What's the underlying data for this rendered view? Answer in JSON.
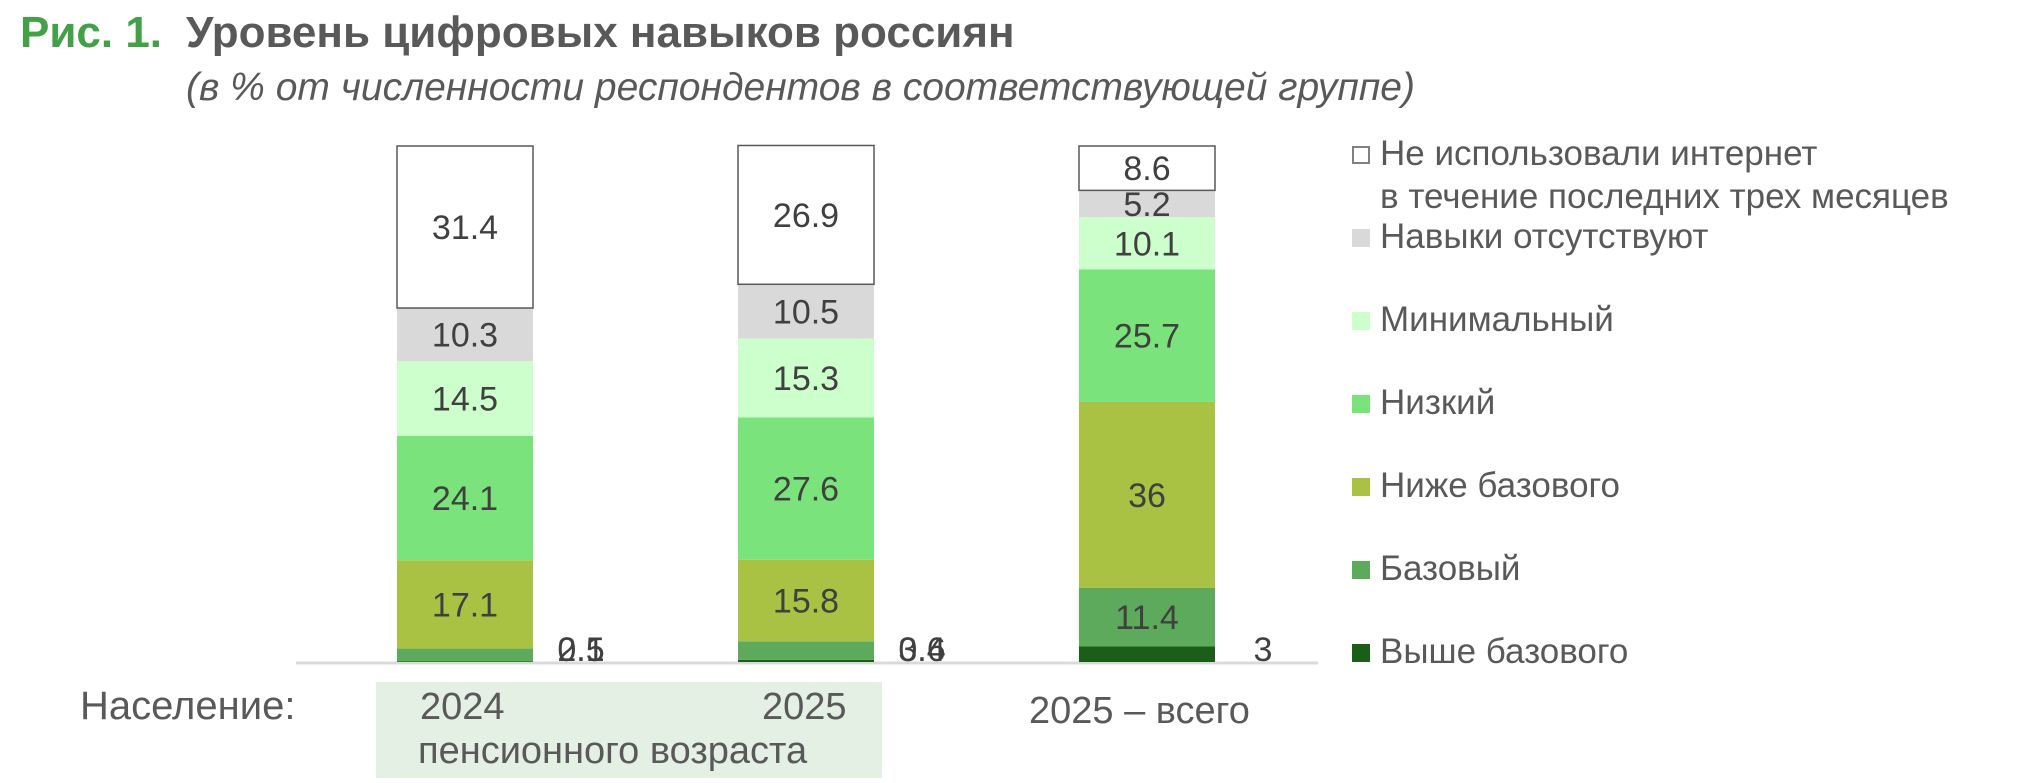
{
  "figure": {
    "prefix": "Рис. 1.",
    "prefix_color": "#43a047",
    "title": "Уровень цифровых навыков россиян",
    "subtitle": "(в % от численности респондентов в соответствующей группе)"
  },
  "axis": {
    "title": "Население:",
    "group_label": "пенсионного возраста",
    "group_band_color": "#e3f0e3"
  },
  "legend": [
    {
      "label": "Не использовали интернет",
      "label2": "в течение последних трех месяцев",
      "color": "#ffffff"
    },
    {
      "label": "Навыки отсутствуют",
      "color": "#d9d9d9"
    },
    {
      "label": "Минимальный",
      "color": "#ccffcc"
    },
    {
      "label": "Низкий",
      "color": "#7be37b"
    },
    {
      "label": "Ниже базового",
      "color": "#a9c244"
    },
    {
      "label": "Базовый",
      "color": "#5daa5d"
    },
    {
      "label": "Выше базового",
      "color": "#1a5e1a"
    }
  ],
  "chart_data": {
    "type": "bar",
    "stacked": true,
    "categories": [
      "2024",
      "2025",
      "2025 – всего"
    ],
    "series": [
      {
        "name": "Выше базового",
        "color": "#1a5e1a",
        "values": [
          0.1,
          0.4,
          3
        ]
      },
      {
        "name": "Базовый",
        "color": "#5daa5d",
        "values": [
          2.5,
          3.6,
          11.4
        ]
      },
      {
        "name": "Ниже базового",
        "color": "#a9c244",
        "values": [
          17.1,
          15.8,
          36
        ]
      },
      {
        "name": "Низкий",
        "color": "#7be37b",
        "values": [
          24.1,
          27.6,
          25.7
        ]
      },
      {
        "name": "Минимальный",
        "color": "#ccffcc",
        "values": [
          14.5,
          15.3,
          10.1
        ]
      },
      {
        "name": "Навыки отсутствуют",
        "color": "#d9d9d9",
        "values": [
          10.3,
          10.5,
          5.2
        ]
      },
      {
        "name": "Не использовали интернет в течение последних трех месяцев",
        "color": "#ffffff",
        "values": [
          31.4,
          26.9,
          8.6
        ]
      }
    ],
    "ylim": [
      0,
      100
    ],
    "grid": false,
    "legend_position": "right",
    "label_color": "#404040"
  }
}
